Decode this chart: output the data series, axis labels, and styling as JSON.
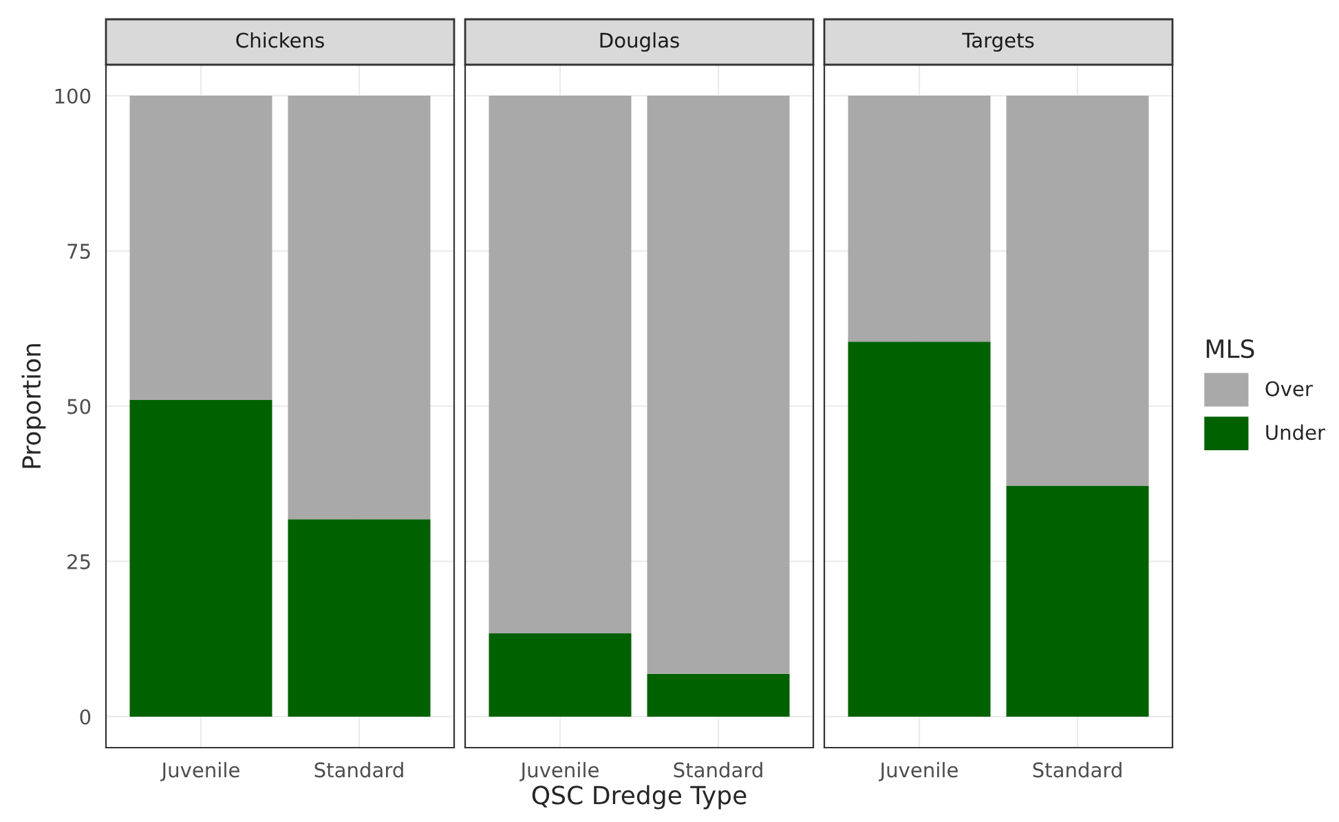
{
  "chart_data": [
    {
      "type": "bar",
      "title": "Chickens",
      "ylabel": "Proportion",
      "legend_title": "MLS",
      "legend": "right",
      "categories": [
        "Juvenile",
        "Standard"
      ],
      "stacked": true,
      "ylim": [
        -5,
        105
      ],
      "yticks": [
        0,
        25,
        50,
        75,
        100
      ],
      "grid": true,
      "series": [
        {
          "name": "Under",
          "color": "#006100",
          "values": [
            51,
            31.8
          ]
        },
        {
          "name": "Over",
          "color": "#a9a9a9",
          "values": [
            49,
            68.2
          ]
        }
      ]
    },
    {
      "type": "bar",
      "title": "Douglas",
      "xlabel": "QSC Dredge Type",
      "categories": [
        "Juvenile",
        "Standard"
      ],
      "stacked": true,
      "ylim": [
        -5,
        105
      ],
      "yticks": [
        0,
        25,
        50,
        75,
        100
      ],
      "grid": true,
      "tick_labels": "x",
      "series": [
        {
          "color": "#006100",
          "values": [
            13.4,
            6.9
          ]
        },
        {
          "color": "#a9a9a9",
          "values": [
            86.6,
            93.1
          ]
        }
      ]
    },
    {
      "type": "bar",
      "title": "Targets",
      "categories": [
        "Juvenile",
        "Standard"
      ],
      "stacked": true,
      "ylim": [
        -5,
        105
      ],
      "yticks": [
        0,
        25,
        50,
        75,
        100
      ],
      "grid": true,
      "tick_labels": "x",
      "series": [
        {
          "color": "#006100",
          "values": [
            60.4,
            37.2
          ]
        },
        {
          "color": "#a9a9a9",
          "values": [
            39.6,
            62.8
          ]
        }
      ]
    }
  ]
}
